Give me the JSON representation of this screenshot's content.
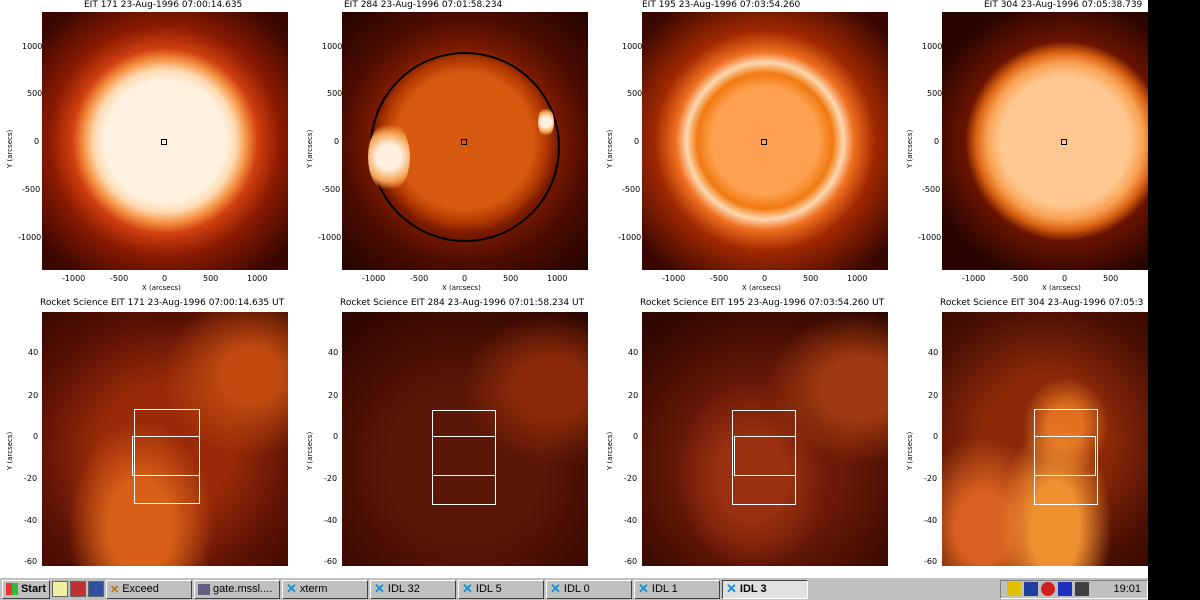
{
  "panels_top": [
    {
      "title": "EIT 171 23-Aug-1996 07:00:14.635"
    },
    {
      "title": "EIT 284 23-Aug-1996 07:01:58.234"
    },
    {
      "title": "EIT 195 23-Aug-1996 07:03:54.260"
    },
    {
      "title": "EIT 304 23-Aug-1996 07:05:38.739"
    }
  ],
  "panels_bottom": [
    {
      "title": "Rocket Science EIT 171 23-Aug-1996 07:00:14.635 UT"
    },
    {
      "title": "Rocket Science EIT 284 23-Aug-1996 07:01:58.234 UT"
    },
    {
      "title": "Rocket Science EIT 195 23-Aug-1996 07:03:54.260 UT"
    },
    {
      "title": "Rocket Science EIT 304 23-Aug-1996 07:05:3"
    }
  ],
  "top_axes": {
    "xlabel": "X (arcsecs)",
    "ylabel": "Y (arcsecs)",
    "xticks": [
      "-1000",
      "-500",
      "0",
      "500",
      "1000"
    ],
    "xticks_last": [
      "-1000",
      "-500",
      "0",
      "500"
    ],
    "yticks": [
      "1000",
      "500",
      "0",
      "-500",
      "-1000"
    ]
  },
  "bottom_axes": {
    "ylabel": "Y (arcsecs)",
    "yticks_a": [
      "40",
      "20",
      "0",
      "-20",
      "-40",
      "-60"
    ],
    "yticks_b": [
      "40",
      "20",
      "0",
      "-20",
      "-40",
      "-60"
    ],
    "yticks_c": [
      "40",
      "20",
      "0",
      "-20",
      "-40",
      "-60"
    ],
    "yticks_d": [
      "40",
      "20",
      "0",
      "-20",
      "-40",
      "-60"
    ]
  },
  "taskbar": {
    "start_label": "Start",
    "buttons": [
      {
        "label": "Exceed",
        "icon": "exceed-icon"
      },
      {
        "label": "gate.mssl....",
        "icon": "terminal-icon"
      },
      {
        "label": "xterm",
        "icon": "x-icon"
      },
      {
        "label": "IDL 32",
        "icon": "x-icon"
      },
      {
        "label": "IDL 5",
        "icon": "x-icon"
      },
      {
        "label": "IDL 0",
        "icon": "x-icon"
      },
      {
        "label": "IDL 1",
        "icon": "x-icon"
      },
      {
        "label": "IDL 3",
        "icon": "x-icon",
        "active": true
      }
    ],
    "clock": "19:01"
  },
  "colors": {
    "sun_bright": "#ffe8cc",
    "sun_orange": "#f07a10",
    "sun_dark": "#3a0800",
    "taskbar": "#c0c0c0"
  }
}
